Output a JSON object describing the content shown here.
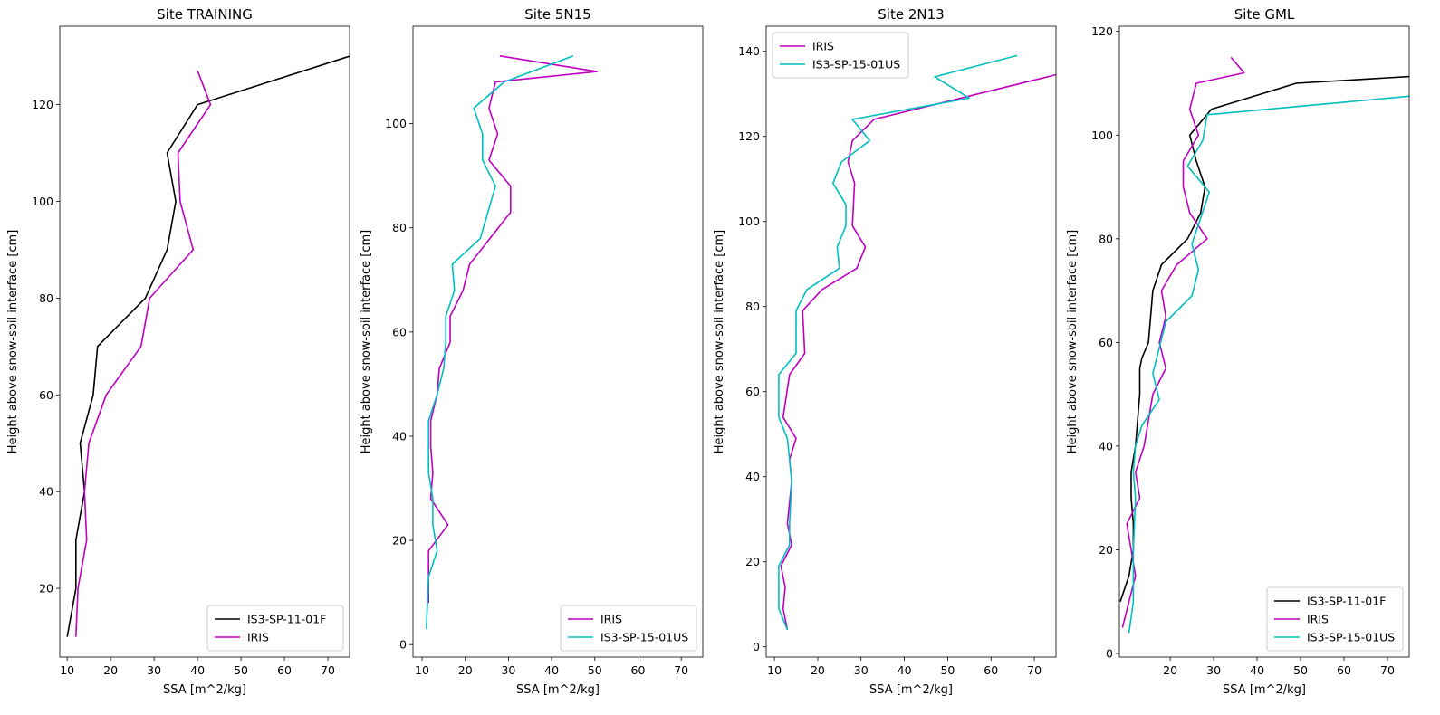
{
  "chart_data": [
    {
      "type": "line",
      "title": "Site TRAINING",
      "xlabel": "SSA [m^2/kg]",
      "ylabel": "Height above snow-soil interface [cm]",
      "xlim": [
        8.3,
        75
      ],
      "ylim": [
        5.8,
        136.2
      ],
      "xticks": [
        10,
        20,
        30,
        40,
        50,
        60,
        70
      ],
      "yticks": [
        20,
        40,
        60,
        80,
        100,
        120
      ],
      "legend_position": "lower-right",
      "series": [
        {
          "name": "IS3-SP-11-01F",
          "color": "#000000",
          "x": [
            10,
            12,
            12,
            14,
            13,
            16,
            17,
            28,
            33,
            35,
            33,
            40,
            75
          ],
          "y": [
            10,
            20,
            30,
            40,
            50,
            60,
            70,
            80,
            90,
            100,
            110,
            120,
            130
          ]
        },
        {
          "name": "IRIS",
          "color": "#bf00bf",
          "x": [
            12,
            12.5,
            14.5,
            14,
            15,
            19,
            27,
            29,
            39,
            36,
            35.5,
            43,
            40
          ],
          "y": [
            10,
            20,
            30,
            40,
            50,
            60,
            70,
            80,
            90,
            100,
            110,
            120,
            127
          ]
        }
      ]
    },
    {
      "type": "line",
      "title": "Site 5N15",
      "xlabel": "SSA [m^2/kg]",
      "ylabel": "Height above snow-soil interface [cm]",
      "xlim": [
        7.9,
        75
      ],
      "ylim": [
        -2.4,
        118.7
      ],
      "xticks": [
        10,
        20,
        30,
        40,
        50,
        60,
        70
      ],
      "yticks": [
        0,
        20,
        40,
        60,
        80,
        100
      ],
      "legend_position": "lower-right",
      "series": [
        {
          "name": "IRIS",
          "color": "#bf00bf",
          "x": [
            11.5,
            11.5,
            11.5,
            16,
            12,
            12.5,
            12,
            12,
            13.5,
            14,
            16.5,
            16.5,
            19.5,
            21,
            30.5,
            30.5,
            25.5,
            27.5,
            25.5,
            27,
            50.5,
            28
          ],
          "y": [
            8,
            13,
            18,
            23,
            28,
            33,
            38,
            43,
            48,
            53,
            58,
            63,
            68,
            73,
            83,
            88,
            93,
            98,
            103,
            108,
            110,
            113
          ]
        },
        {
          "name": "IS3-SP-15-01US",
          "color": "#00bfbf",
          "x": [
            11,
            11.5,
            13.5,
            12.5,
            12.5,
            11.5,
            11.5,
            13.5,
            15,
            15.5,
            15.5,
            17.5,
            17,
            23.5,
            27,
            24,
            24,
            22,
            29,
            45
          ],
          "y": [
            3,
            13,
            18,
            23,
            28,
            33,
            43,
            48,
            53,
            58,
            63,
            68,
            73,
            78,
            88,
            93,
            98,
            103,
            108,
            113
          ]
        }
      ]
    },
    {
      "type": "line",
      "title": "Site 2N13",
      "xlabel": "SSA [m^2/kg]",
      "ylabel": "Height above snow-soil interface [cm]",
      "xlim": [
        8.1,
        75
      ],
      "ylim": [
        -2.4,
        145.9
      ],
      "xticks": [
        10,
        20,
        30,
        40,
        50,
        60,
        70
      ],
      "yticks": [
        0,
        20,
        40,
        60,
        80,
        100,
        120,
        140
      ],
      "legend_position": "upper-left",
      "series": [
        {
          "name": "IRIS",
          "color": "#bf00bf",
          "x": [
            13,
            12,
            12.5,
            11.5,
            14,
            13,
            14,
            13.5,
            15,
            12,
            13.5,
            17,
            16.5,
            21,
            29,
            31,
            28,
            28.5,
            27,
            28,
            33,
            75
          ],
          "y": [
            4,
            9,
            14,
            19,
            24,
            29,
            39,
            44,
            49,
            54,
            64,
            69,
            79,
            84,
            89,
            94,
            99,
            109,
            114,
            119,
            124,
            134.5
          ]
        },
        {
          "name": "IS3-SP-15-01US",
          "color": "#00bfbf",
          "x": [
            13,
            11,
            11,
            13.5,
            13.5,
            14,
            13,
            11,
            11,
            15,
            15,
            17.5,
            25,
            24.5,
            26.5,
            26.5,
            23.5,
            25.5,
            32,
            28,
            55,
            47,
            66
          ],
          "y": [
            4,
            9,
            19,
            24,
            29,
            39,
            49,
            54,
            64,
            69,
            79,
            84,
            89,
            94,
            99,
            104,
            109,
            114,
            119,
            124,
            129,
            134,
            139
          ]
        }
      ]
    },
    {
      "type": "line",
      "title": "Site GML",
      "xlabel": "SSA [m^2/kg]",
      "ylabel": "Height above snow-soil interface [cm]",
      "xlim": [
        8.3,
        75
      ],
      "ylim": [
        -0.7,
        121.0
      ],
      "xticks": [
        20,
        30,
        40,
        50,
        60,
        70
      ],
      "yticks": [
        0,
        20,
        40,
        60,
        80,
        100,
        120
      ],
      "legend_position": "lower-right",
      "series": [
        {
          "name": "IS3-SP-11-01F",
          "color": "#000000",
          "x": [
            8.5,
            10.5,
            11.5,
            11.5,
            11,
            11,
            12,
            12.5,
            13,
            13,
            13.5,
            15,
            15.5,
            16,
            18,
            24,
            27,
            28,
            26,
            24.5,
            29.5,
            49,
            75
          ],
          "y": [
            10,
            15,
            20,
            25,
            30,
            35,
            40,
            45,
            50,
            55,
            57,
            60,
            65,
            70,
            75,
            80,
            85,
            90,
            95,
            100,
            105,
            110,
            111.3
          ]
        },
        {
          "name": "IRIS",
          "color": "#bf00bf",
          "x": [
            9,
            10.5,
            12,
            10,
            13,
            12,
            14,
            15,
            16,
            19,
            17.5,
            19,
            18,
            21.5,
            28.5,
            24.5,
            23,
            23,
            26.5,
            24.5,
            26,
            26,
            37,
            34
          ],
          "y": [
            5,
            10,
            15,
            25,
            30,
            35,
            40,
            45,
            50,
            55,
            60,
            65,
            70,
            75,
            80,
            85,
            90,
            95,
            100,
            105,
            110,
            110,
            112,
            115
          ]
        },
        {
          "name": "IS3-SP-15-01US",
          "color": "#00bfbf",
          "x": [
            10.5,
            11.5,
            11.5,
            12,
            11.5,
            12,
            13.5,
            17.5,
            16,
            17.5,
            19,
            25,
            26.5,
            25,
            29,
            24,
            27.5,
            28.5,
            29.5,
            29.5,
            75
          ],
          "y": [
            4,
            10,
            20,
            30,
            35,
            40,
            44,
            49,
            54,
            59,
            64,
            69,
            74,
            79,
            89,
            94,
            99,
            104,
            104,
            104,
            107.5
          ]
        }
      ]
    }
  ]
}
